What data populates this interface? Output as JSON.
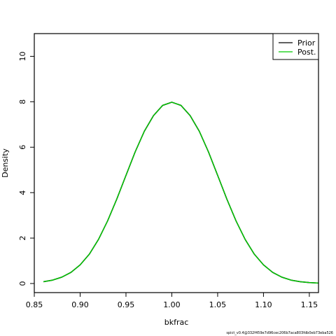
{
  "chart_data": {
    "type": "line",
    "title": "",
    "xlabel": "bkfrac",
    "ylabel": "Density",
    "xlim": [
      0.85,
      1.16
    ],
    "ylim": [
      -0.4,
      11.0
    ],
    "x_ticks": [
      "0.85",
      "0.90",
      "0.95",
      "1.00",
      "1.05",
      "1.10",
      "1.15"
    ],
    "y_ticks": [
      "0",
      "2",
      "4",
      "6",
      "8",
      "10"
    ],
    "grid": false,
    "legend_position": "top-right",
    "series": [
      {
        "name": "Prior",
        "color": "#000000",
        "x": [
          0.86,
          0.87,
          0.88,
          0.89,
          0.9,
          0.91,
          0.92,
          0.93,
          0.94,
          0.95,
          0.96,
          0.97,
          0.98,
          0.99,
          1.0,
          1.01,
          1.02,
          1.03,
          1.04,
          1.05,
          1.06,
          1.07,
          1.08,
          1.09,
          1.1,
          1.11,
          1.12,
          1.13,
          1.14,
          1.15,
          1.16
        ],
        "y": [
          0.08,
          0.15,
          0.28,
          0.49,
          0.82,
          1.29,
          1.94,
          2.76,
          3.72,
          4.76,
          5.79,
          6.7,
          7.39,
          7.84,
          7.98,
          7.84,
          7.39,
          6.7,
          5.79,
          4.76,
          3.72,
          2.76,
          1.94,
          1.29,
          0.82,
          0.49,
          0.28,
          0.15,
          0.08,
          0.04,
          0.02
        ]
      },
      {
        "name": "Post.",
        "color": "#00cc00",
        "x": [
          0.86,
          0.87,
          0.88,
          0.89,
          0.9,
          0.91,
          0.92,
          0.93,
          0.94,
          0.95,
          0.96,
          0.97,
          0.98,
          0.99,
          1.0,
          1.01,
          1.02,
          1.03,
          1.04,
          1.05,
          1.06,
          1.07,
          1.08,
          1.09,
          1.1,
          1.11,
          1.12,
          1.13,
          1.14,
          1.15,
          1.16
        ],
        "y": [
          0.08,
          0.15,
          0.28,
          0.49,
          0.82,
          1.29,
          1.94,
          2.76,
          3.72,
          4.76,
          5.79,
          6.7,
          7.39,
          7.84,
          7.98,
          7.84,
          7.39,
          6.7,
          5.79,
          4.76,
          3.72,
          2.76,
          1.94,
          1.29,
          0.82,
          0.49,
          0.28,
          0.15,
          0.08,
          0.04,
          0.02
        ]
      }
    ]
  },
  "footer": "spict_v0.4@332f459e7d96cec206b7aca803fdb0eb73eba526"
}
